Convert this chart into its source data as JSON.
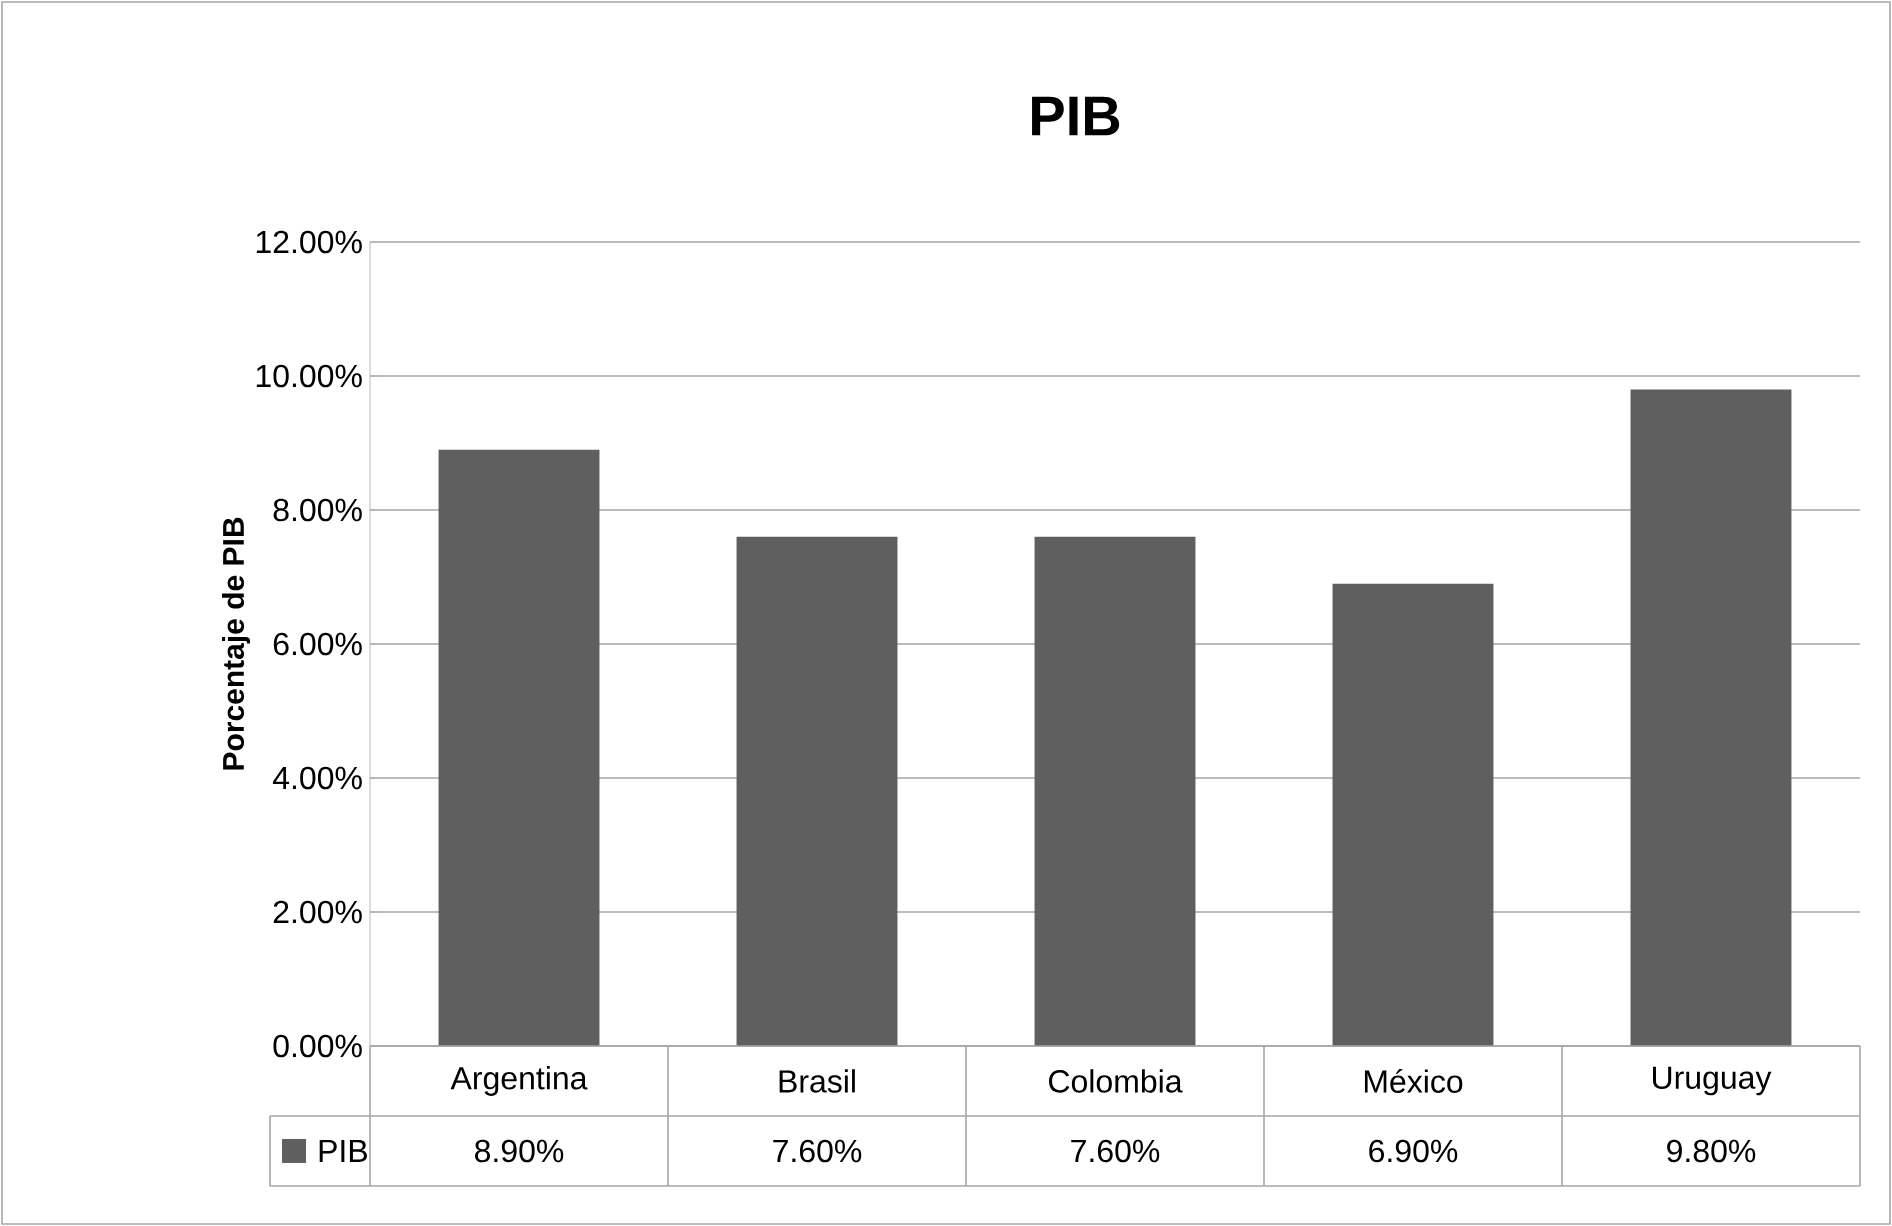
{
  "chart_data": {
    "type": "bar",
    "title": "PIB",
    "ylabel": "Porcentaje de PIB",
    "categories": [
      "Argentina",
      "Brasil",
      "Colombia",
      "México",
      "Uruguay"
    ],
    "series": [
      {
        "name": "PIB",
        "color": "#5f5f5f",
        "values": [
          8.9,
          7.6,
          7.6,
          6.9,
          9.8
        ],
        "value_labels": [
          "8.90%",
          "7.60%",
          "7.60%",
          "6.90%",
          "9.80%"
        ]
      }
    ],
    "ylim": [
      0,
      12
    ],
    "yticks": [
      {
        "value": 0,
        "label": "0.00%"
      },
      {
        "value": 2,
        "label": "2.00%"
      },
      {
        "value": 4,
        "label": "4.00%"
      },
      {
        "value": 6,
        "label": "6.00%"
      },
      {
        "value": 8,
        "label": "8.00%"
      },
      {
        "value": 10,
        "label": "10.00%"
      },
      {
        "value": 12,
        "label": "12.00%"
      }
    ],
    "grid": "y",
    "legend": "bottom left"
  }
}
